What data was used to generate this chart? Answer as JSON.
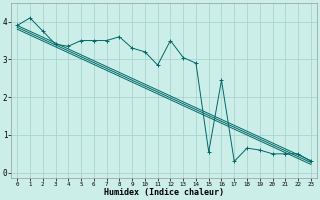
{
  "xlabel": "Humidex (Indice chaleur)",
  "background_color": "#cceee8",
  "grid_color": "#aad4ce",
  "line_color": "#006868",
  "xlim": [
    -0.5,
    23.5
  ],
  "ylim": [
    -0.15,
    4.5
  ],
  "xticks": [
    0,
    1,
    2,
    3,
    4,
    5,
    6,
    7,
    8,
    9,
    10,
    11,
    12,
    13,
    14,
    15,
    16,
    17,
    18,
    19,
    20,
    21,
    22,
    23
  ],
  "yticks": [
    0,
    1,
    2,
    3,
    4
  ],
  "scatter_x": [
    0,
    1,
    2,
    3,
    4,
    5,
    6,
    7,
    8,
    9,
    10,
    11,
    12,
    13,
    14,
    15,
    16,
    17,
    18,
    19,
    20,
    21,
    22,
    23
  ],
  "scatter_y": [
    3.9,
    4.1,
    3.75,
    3.4,
    3.35,
    3.5,
    3.5,
    3.5,
    3.6,
    3.3,
    3.2,
    2.85,
    3.5,
    3.05,
    2.9,
    0.55,
    2.45,
    0.3,
    0.65,
    0.6,
    0.5,
    0.5,
    0.5,
    0.3
  ],
  "trend_lines": [
    {
      "x0": 0,
      "y0": 3.9,
      "x1": 23,
      "y1": 0.32
    },
    {
      "x0": 0,
      "y0": 3.85,
      "x1": 23,
      "y1": 0.27
    },
    {
      "x0": 0,
      "y0": 3.8,
      "x1": 23,
      "y1": 0.22
    }
  ]
}
